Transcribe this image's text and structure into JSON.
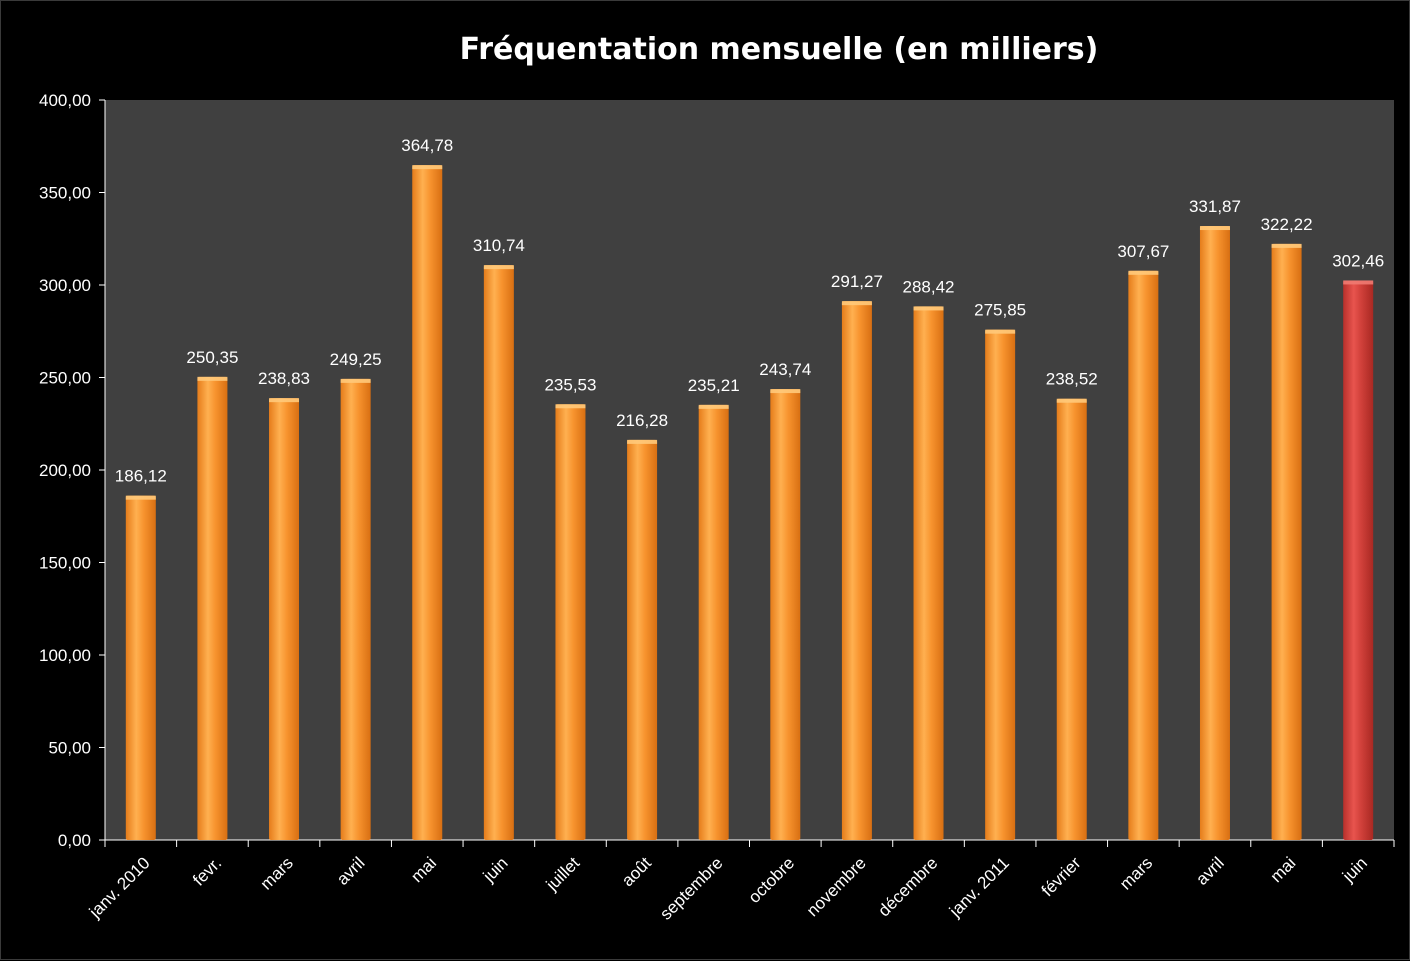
{
  "chart_data": {
    "type": "bar",
    "title": "Fréquentation mensuelle (en milliers)",
    "xlabel": "",
    "ylabel": "",
    "ylim": [
      0,
      400
    ],
    "y_ticks": [
      "0,00",
      "50,00",
      "100,00",
      "150,00",
      "200,00",
      "250,00",
      "300,00",
      "350,00",
      "400,00"
    ],
    "categories": [
      "janv. 2010",
      "fevr.",
      "mars",
      "avril",
      "mai",
      "juin",
      "juillet",
      "août",
      "septembre",
      "octobre",
      "novembre",
      "décembre",
      "janv. 2011",
      "février",
      "mars",
      "avril",
      "mai",
      "juin"
    ],
    "values": [
      186.12,
      250.35,
      238.83,
      249.25,
      364.78,
      310.74,
      235.53,
      216.28,
      235.21,
      243.74,
      291.27,
      288.42,
      275.85,
      238.52,
      307.67,
      331.87,
      322.22,
      302.46
    ],
    "value_labels": [
      "186,12",
      "250,35",
      "238,83",
      "249,25",
      "364,78",
      "310,74",
      "235,53",
      "216,28",
      "235,21",
      "243,74",
      "291,27",
      "288,42",
      "275,85",
      "238,52",
      "307,67",
      "331,87",
      "322,22",
      "302,46"
    ],
    "grid": false,
    "legend": "none",
    "colors": {
      "background": "#000000",
      "plot_area": "#404040",
      "bar": "#f7932e",
      "bar_highlight": "#d0403a",
      "axis": "#ffffff",
      "text": "#ffffff"
    },
    "highlighted_index": 17
  }
}
